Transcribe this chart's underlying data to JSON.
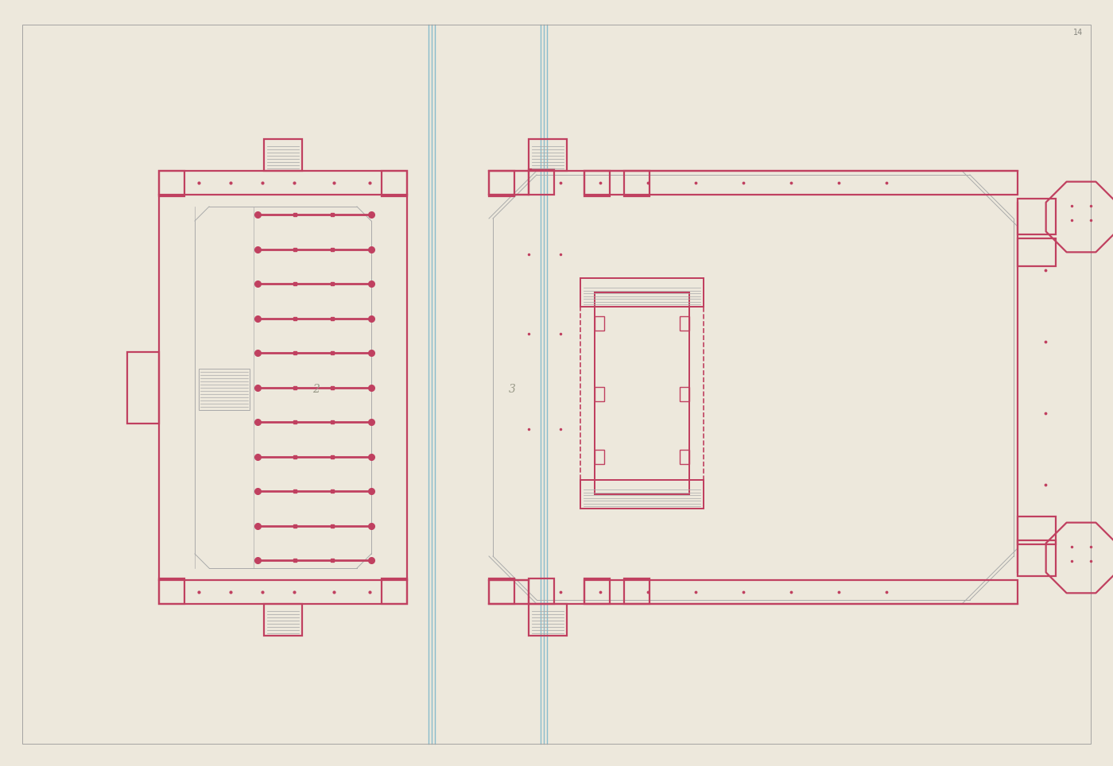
{
  "bg": "#ede8dc",
  "lc": "#c04060",
  "tc": "#aaaaaa",
  "bc": "#88bbcc",
  "figsize": [
    14.0,
    9.64
  ],
  "dpi": 100,
  "lw": 1.6,
  "tw": 0.7
}
